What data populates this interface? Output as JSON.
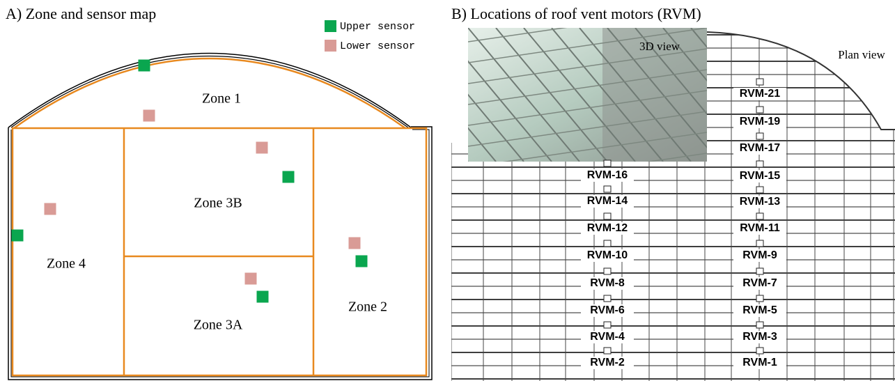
{
  "panel_a": {
    "title": "A) Zone and sensor map",
    "legend": [
      "Upper sensor",
      "Lower sensor"
    ],
    "zones": [
      "Zone 1",
      "Zone 3B",
      "Zone 4",
      "Zone 3A",
      "Zone 2"
    ]
  },
  "panel_b": {
    "title": "B) Locations of roof vent motors (RVM)",
    "views": [
      "3D view",
      "Plan view"
    ],
    "left_rvm": [
      "RVM-16",
      "RVM-14",
      "RVM-12",
      "RVM-10",
      "RVM-8",
      "RVM-6",
      "RVM-4",
      "RVM-2"
    ],
    "right_rvm": [
      "RVM-21",
      "RVM-19",
      "RVM-17",
      "RVM-15",
      "RVM-13",
      "RVM-11",
      "RVM-9",
      "RVM-7",
      "RVM-5",
      "RVM-3",
      "RVM-1"
    ]
  }
}
